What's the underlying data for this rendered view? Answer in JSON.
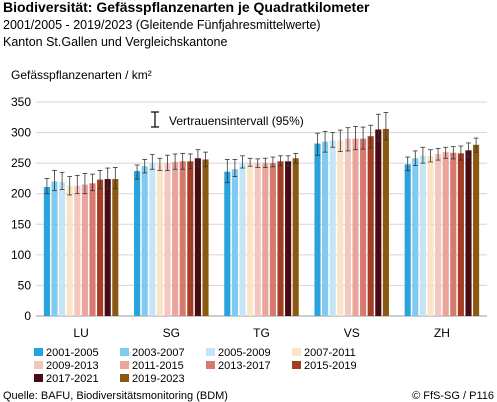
{
  "chart_data": {
    "type": "bar",
    "title": "Biodiversität: Gefässpflanzenarten je Quadratkilometer",
    "subtitle": "2001/2005 - 2019/2023 (Gleitende Fünfjahresmittelwerte)",
    "subtitle2": "Kanton St.Gallen und Vergleichskantone",
    "ylabel": "Gefässpflanzenarten / km²",
    "ylim": [
      0,
      350
    ],
    "yticks": [
      "0",
      "50",
      "100",
      "150",
      "200",
      "250",
      "300",
      "350"
    ],
    "grid": true,
    "categories": [
      "LU",
      "SG",
      "TG",
      "VS",
      "ZH"
    ],
    "ci_label": "Vertrauensintervall (95%)",
    "series": [
      {
        "name": "2001-2005",
        "color": "#29a3dd",
        "values": [
          211,
          237,
          236,
          282,
          248
        ],
        "ci_low": [
          200,
          224,
          218,
          263,
          238
        ],
        "ci_high": [
          225,
          247,
          256,
          299,
          260
        ]
      },
      {
        "name": "2003-2007",
        "color": "#7fcaf0",
        "values": [
          220,
          245,
          240,
          285,
          258
        ],
        "ci_low": [
          205,
          234,
          228,
          268,
          246
        ],
        "ci_high": [
          238,
          256,
          256,
          302,
          270
        ]
      },
      {
        "name": "2005-2009",
        "color": "#c3e5f7",
        "values": [
          219,
          250,
          251,
          287,
          262
        ],
        "ci_low": [
          207,
          240,
          242,
          276,
          250
        ],
        "ci_high": [
          235,
          264,
          262,
          300,
          276
        ]
      },
      {
        "name": "2007-2011",
        "color": "#fbe4c5",
        "values": [
          213,
          248,
          250,
          287,
          262
        ],
        "ci_low": [
          198,
          238,
          245,
          269,
          252
        ],
        "ci_high": [
          228,
          258,
          258,
          304,
          272
        ]
      },
      {
        "name": "2009-2013",
        "color": "#f4c6c0",
        "values": [
          213,
          250,
          250,
          290,
          265
        ],
        "ci_low": [
          200,
          238,
          243,
          270,
          255
        ],
        "ci_high": [
          230,
          263,
          257,
          308,
          274
        ]
      },
      {
        "name": "2011-2015",
        "color": "#e9a49c",
        "values": [
          215,
          252,
          250,
          290,
          268
        ],
        "ci_low": [
          200,
          240,
          243,
          272,
          258
        ],
        "ci_high": [
          233,
          265,
          258,
          310,
          276
        ]
      },
      {
        "name": "2013-2017",
        "color": "#d8796f",
        "values": [
          217,
          253,
          250,
          290,
          267
        ],
        "ci_low": [
          205,
          240,
          244,
          273,
          257
        ],
        "ci_high": [
          232,
          266,
          260,
          309,
          277
        ]
      },
      {
        "name": "2015-2019",
        "color": "#a33d24",
        "values": [
          223,
          253,
          253,
          294,
          266
        ],
        "ci_low": [
          208,
          241,
          246,
          275,
          255
        ],
        "ci_high": [
          238,
          265,
          262,
          312,
          278
        ]
      },
      {
        "name": "2017-2021",
        "color": "#4a0a14",
        "values": [
          224,
          258,
          253,
          305,
          271
        ],
        "ci_low": [
          208,
          244,
          245,
          286,
          260
        ],
        "ci_high": [
          242,
          272,
          262,
          330,
          283
        ]
      },
      {
        "name": "2019-2023",
        "color": "#8b5a12",
        "values": [
          224,
          256,
          258,
          306,
          280
        ],
        "ci_low": [
          208,
          244,
          250,
          288,
          268
        ],
        "ci_high": [
          243,
          268,
          266,
          333,
          291
        ]
      }
    ],
    "source": "Quelle: BAFU, Biodiversitätsmonitoring (BDM)",
    "credit": "© FfS-SG / P116"
  }
}
